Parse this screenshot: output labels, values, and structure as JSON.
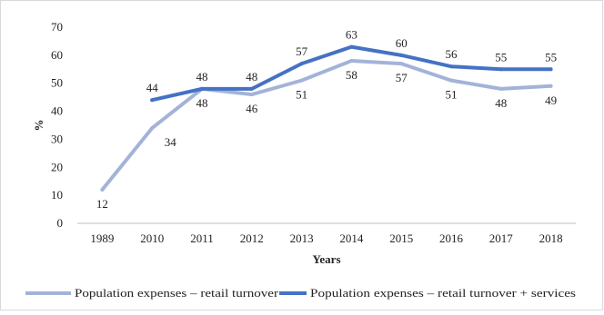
{
  "chart_data": {
    "type": "line",
    "categories": [
      "1989",
      "2010",
      "2011",
      "2012",
      "2013",
      "2014",
      "2015",
      "2016",
      "2017",
      "2018"
    ],
    "series": [
      {
        "name": "Population expenses  – retail turnover",
        "values": [
          12,
          34,
          48,
          46,
          51,
          58,
          57,
          51,
          48,
          49
        ],
        "color": "#a3b3d8"
      },
      {
        "name": "Population expenses  – retail turnover + services",
        "values": [
          null,
          44,
          48,
          48,
          57,
          63,
          60,
          56,
          55,
          55
        ],
        "color": "#4472c4"
      }
    ],
    "xlabel": "Years",
    "ylabel": "%",
    "ylim": [
      0,
      70
    ],
    "yticks": [
      0,
      10,
      20,
      30,
      40,
      50,
      60,
      70
    ],
    "grid": false,
    "legend_position": "bottom"
  }
}
